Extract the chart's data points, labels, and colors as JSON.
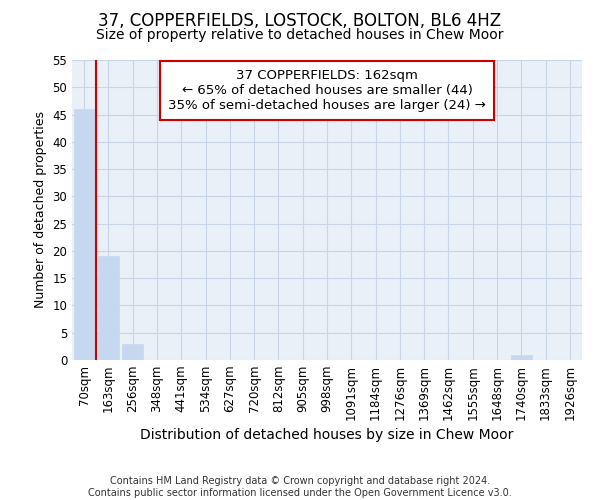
{
  "title": "37, COPPERFIELDS, LOSTOCK, BOLTON, BL6 4HZ",
  "subtitle": "Size of property relative to detached houses in Chew Moor",
  "xlabel_bottom": "Distribution of detached houses by size in Chew Moor",
  "ylabel": "Number of detached properties",
  "bar_labels": [
    "70sqm",
    "163sqm",
    "256sqm",
    "348sqm",
    "441sqm",
    "534sqm",
    "627sqm",
    "720sqm",
    "812sqm",
    "905sqm",
    "998sqm",
    "1091sqm",
    "1184sqm",
    "1276sqm",
    "1369sqm",
    "1462sqm",
    "1555sqm",
    "1648sqm",
    "1740sqm",
    "1833sqm",
    "1926sqm"
  ],
  "bar_values": [
    46,
    19,
    3,
    0,
    0,
    0,
    0,
    0,
    0,
    0,
    0,
    0,
    0,
    0,
    0,
    0,
    0,
    0,
    1,
    0,
    0
  ],
  "bar_color": "#c5d8ef",
  "bar_edge_color": "#c5d8ef",
  "vline_color": "#cc0000",
  "annotation_box_text": "37 COPPERFIELDS: 162sqm\n← 65% of detached houses are smaller (44)\n35% of semi-detached houses are larger (24) →",
  "ylim": [
    0,
    55
  ],
  "yticks": [
    0,
    5,
    10,
    15,
    20,
    25,
    30,
    35,
    40,
    45,
    50,
    55
  ],
  "grid_color": "#c8d4e8",
  "background_color": "#eaf0f8",
  "footer_text": "Contains HM Land Registry data © Crown copyright and database right 2024.\nContains public sector information licensed under the Open Government Licence v3.0.",
  "title_fontsize": 12,
  "subtitle_fontsize": 10,
  "ylabel_fontsize": 9,
  "tick_fontsize": 8.5,
  "annot_fontsize": 9.5
}
